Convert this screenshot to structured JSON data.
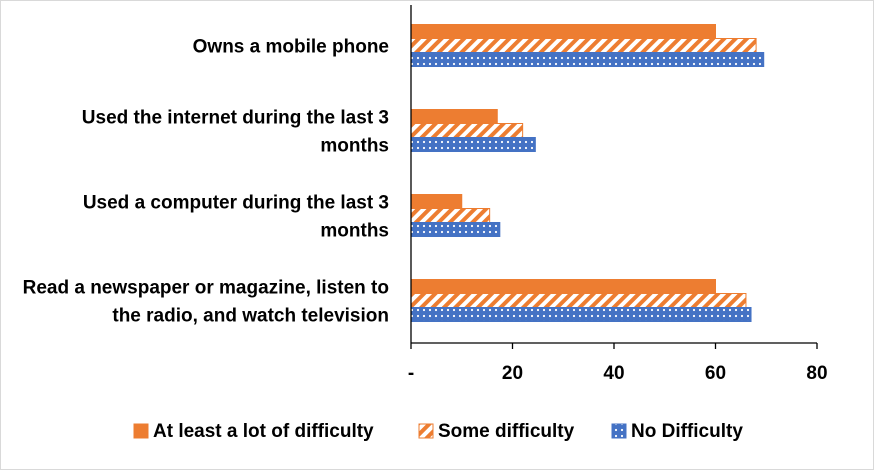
{
  "chart_data": {
    "type": "bar",
    "orientation": "horizontal",
    "categories": [
      "Owns a mobile phone",
      "Used the internet during the last 3 months",
      "Used a computer during the last 3 months",
      "Read a newspaper or magazine, listen to the radio, and watch television"
    ],
    "category_lines": [
      [
        "Owns a mobile phone"
      ],
      [
        "Used the internet during the last 3",
        "months"
      ],
      [
        "Used a computer during the last 3",
        "months"
      ],
      [
        "Read a newspaper or magazine, listen to",
        "the radio, and watch television"
      ]
    ],
    "series": [
      {
        "name": "At least a lot of difficulty",
        "values": [
          60,
          17,
          10,
          60
        ],
        "color": "#ed7d31",
        "pattern": "solid"
      },
      {
        "name": "Some difficulty",
        "values": [
          68,
          22,
          15.5,
          66
        ],
        "color": "#ed7d31",
        "pattern": "diagonal-stripes"
      },
      {
        "name": "No Difficulty",
        "values": [
          69.5,
          24.5,
          17.5,
          67
        ],
        "color": "#4472c4",
        "pattern": "dots"
      }
    ],
    "xlim": [
      0,
      80
    ],
    "xticks": [
      0,
      20,
      40,
      60,
      80
    ],
    "xtick_labels": [
      "-",
      "20",
      "40",
      "60",
      "80"
    ],
    "grid": false,
    "legend_position": "bottom",
    "title": "",
    "xlabel": "",
    "ylabel": ""
  }
}
